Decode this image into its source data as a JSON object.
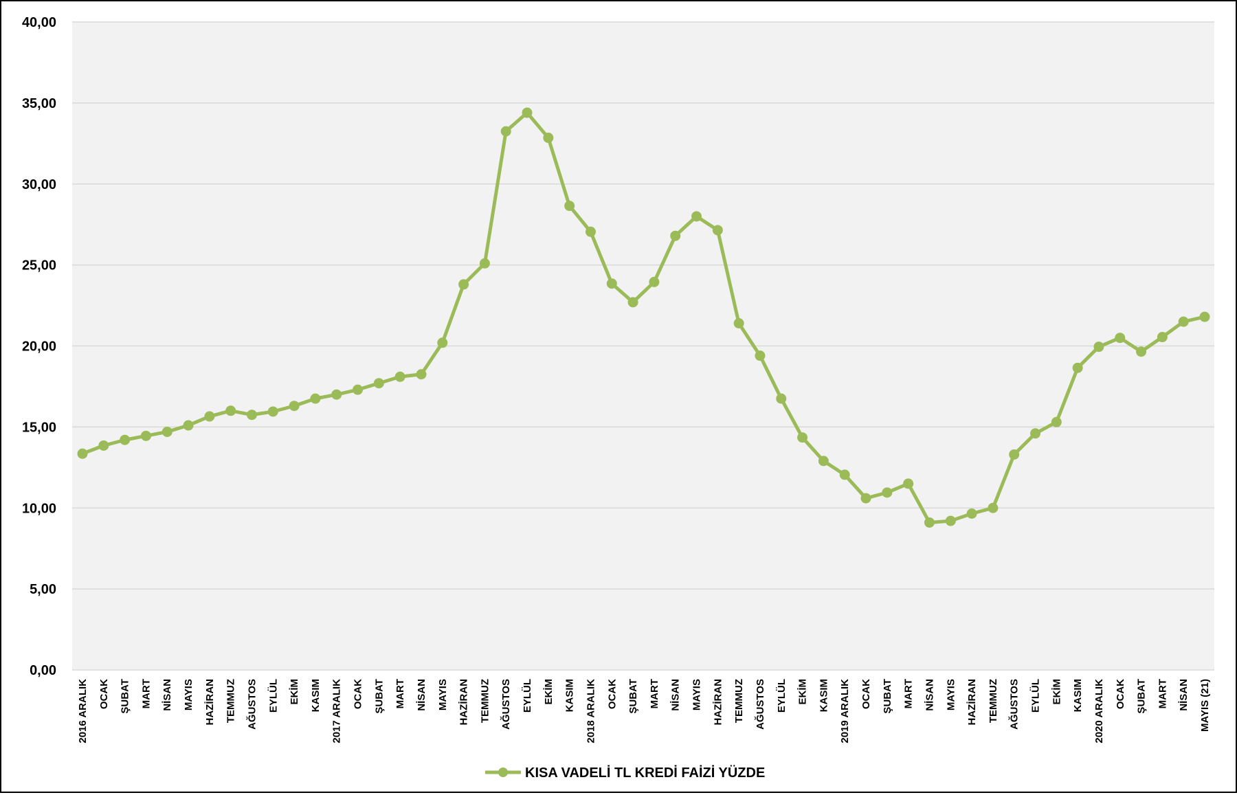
{
  "chart_data": {
    "type": "line",
    "title": "",
    "xlabel": "",
    "ylabel": "",
    "ylim": [
      0,
      40
    ],
    "ytick_step": 5,
    "ytick_labels": [
      "0,00",
      "5,00",
      "10,00",
      "15,00",
      "20,00",
      "25,00",
      "30,00",
      "35,00",
      "40,00"
    ],
    "grid": true,
    "legend_position": "bottom-center",
    "plot_background": "#f2f2f2",
    "gridline_color": "#d9d9d9",
    "categories": [
      "2016 ARALIK",
      "OCAK",
      "ŞUBAT",
      "MART",
      "NİSAN",
      "MAYIS",
      "HAZİRAN",
      "TEMMUZ",
      "AĞUSTOS",
      "EYLÜL",
      "EKİM",
      "KASIM",
      "2017 ARALIK",
      "OCAK",
      "ŞUBAT",
      "MART",
      "NİSAN",
      "MAYIS",
      "HAZİRAN",
      "TEMMUZ",
      "AĞUSTOS",
      "EYLÜL",
      "EKİM",
      "KASIM",
      "2018 ARALIK",
      "OCAK",
      "ŞUBAT",
      "MART",
      "NİSAN",
      "MAYIS",
      "HAZİRAN",
      "TEMMUZ",
      "AĞUSTOS",
      "EYLÜL",
      "EKİM",
      "KASIM",
      "2019 ARALIK",
      "OCAK",
      "ŞUBAT",
      "MART",
      "NİSAN",
      "MAYIS",
      "HAZİRAN",
      "TEMMUZ",
      "AĞUSTOS",
      "EYLÜL",
      "EKİM",
      "KASIM",
      "2020 ARALIK",
      "OCAK",
      "ŞUBAT",
      "MART",
      "NİSAN",
      "MAYIS (21)"
    ],
    "series": [
      {
        "name": "KISA VADELİ TL KREDİ FAİZİ YÜZDE",
        "color": "#9bbb59",
        "values": [
          13.35,
          13.85,
          14.2,
          14.45,
          14.7,
          15.1,
          15.65,
          16.0,
          15.75,
          15.95,
          16.3,
          16.75,
          17.0,
          17.3,
          17.7,
          18.1,
          18.25,
          20.2,
          23.8,
          25.1,
          33.25,
          34.4,
          32.85,
          28.65,
          27.05,
          23.85,
          22.7,
          23.95,
          26.8,
          28.0,
          27.15,
          21.4,
          19.4,
          16.75,
          14.35,
          12.9,
          12.05,
          10.6,
          10.95,
          11.5,
          9.1,
          9.2,
          9.65,
          10.0,
          13.3,
          14.6,
          15.3,
          18.65,
          19.95,
          20.5,
          19.65,
          20.55,
          21.5,
          21.8
        ]
      }
    ]
  }
}
